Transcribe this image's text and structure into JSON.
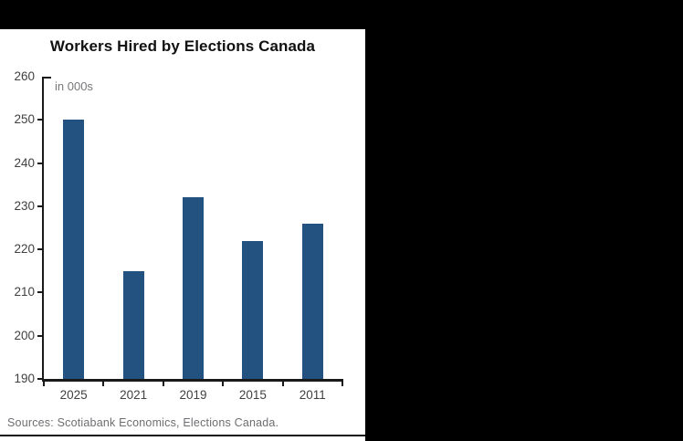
{
  "panel": {
    "title": "Workers Hired by Elections Canada",
    "unit_label": "in 000s",
    "sources": "Sources: Scotiabank Economics, Elections Canada."
  },
  "colors": {
    "background": "#000000",
    "panel": "#ffffff",
    "bar": "#235180",
    "axis": "#1a1a1a",
    "tick_label": "#414042",
    "unit_label_text": "#77787b",
    "sources_text": "#6d6e71",
    "bottom_rule": "#111111"
  },
  "chart_data": {
    "type": "bar",
    "title": "Workers Hired by Elections Canada",
    "categories": [
      "2025",
      "2021",
      "2019",
      "2015",
      "2011"
    ],
    "values": [
      250,
      215,
      232,
      222,
      226
    ],
    "xlabel": "",
    "ylabel": "in 000s",
    "ylim": [
      190,
      260
    ],
    "ytick_step": 10,
    "yticks": [
      190,
      200,
      210,
      220,
      230,
      240,
      250,
      260
    ],
    "grid": false,
    "legend": null,
    "bar_color": "#235180"
  }
}
